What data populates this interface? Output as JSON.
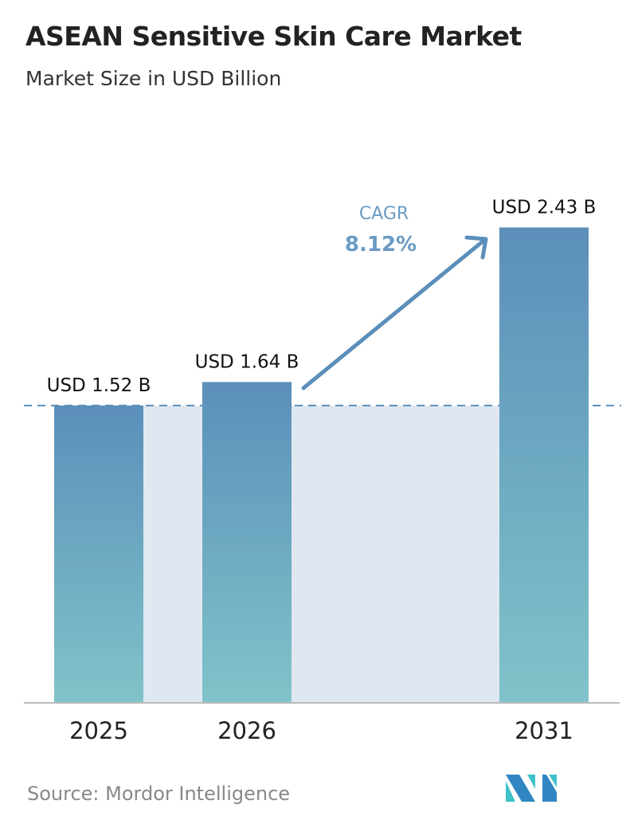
{
  "title": "ASEAN Sensitive Skin Care Market",
  "subtitle": "Market Size in USD Billion",
  "source": "Source:  Mordor Intelligence",
  "logo_text": "MI",
  "chart_data": {
    "type": "bar",
    "title": "ASEAN Sensitive Skin Care Market",
    "subtitle": "Market Size in USD Billion",
    "categories": [
      "2025",
      "2026",
      "2031"
    ],
    "values": [
      1.52,
      1.64,
      2.43
    ],
    "labels": [
      "USD 1.52 B",
      "USD 1.64 B",
      "USD 2.43 B"
    ],
    "unit": "USD Billion",
    "annotation": {
      "label": "CAGR",
      "value": "8.12%"
    },
    "reference_line": 1.52,
    "grid": false,
    "colors": {
      "bar_top": "#5b8fba",
      "bar_bottom": "#80c3c9",
      "band": "#dfe8f1",
      "arrow": "#5b8fba",
      "cagr": "#5b8fba"
    }
  }
}
